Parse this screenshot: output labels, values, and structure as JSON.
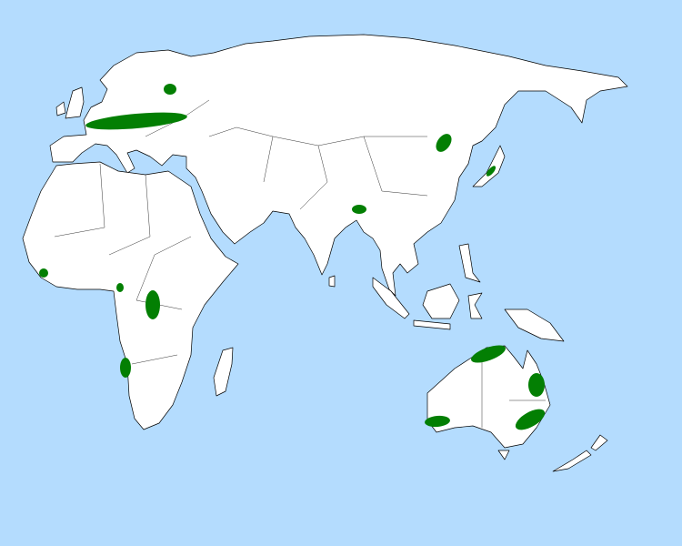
{
  "map": {
    "colors": {
      "ocean": "#b4dcfe",
      "land": "#ffffff",
      "outline": "#000000",
      "range": "#037f03"
    }
  }
}
